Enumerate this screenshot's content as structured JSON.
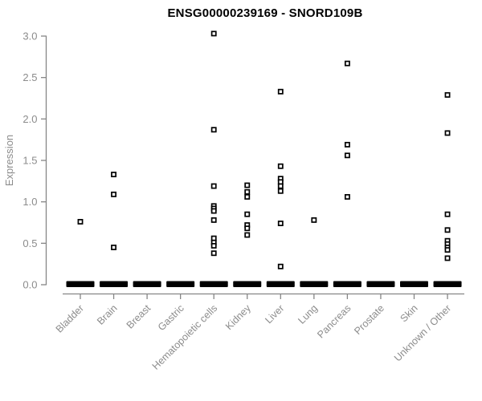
{
  "chart_data": {
    "type": "scatter",
    "title": "ENSG00000239169 - SNORD109B",
    "xlabel": "",
    "ylabel": "Expression",
    "ylim": [
      0.0,
      3.0
    ],
    "yticks": [
      "0.0",
      "0.5",
      "1.0",
      "1.5",
      "2.0",
      "2.5",
      "3.0"
    ],
    "categories": [
      "Bladder",
      "Brain",
      "Breast",
      "Gastric",
      "Hematopoietic cells",
      "Kidney",
      "Liver",
      "Lung",
      "Pancreas",
      "Prostate",
      "Skin",
      "Unknown / Other"
    ],
    "series": [
      {
        "category": "Bladder",
        "values": [
          0.76
        ]
      },
      {
        "category": "Brain",
        "values": [
          1.33,
          1.09,
          0.45
        ]
      },
      {
        "category": "Breast",
        "values": []
      },
      {
        "category": "Gastric",
        "values": []
      },
      {
        "category": "Hematopoietic cells",
        "values": [
          3.03,
          1.87,
          1.19,
          0.95,
          0.92,
          0.89,
          0.78,
          0.56,
          0.51,
          0.47,
          0.38
        ]
      },
      {
        "category": "Kidney",
        "values": [
          1.2,
          1.12,
          1.06,
          0.85,
          0.72,
          0.68,
          0.6
        ]
      },
      {
        "category": "Liver",
        "values": [
          2.33,
          1.43,
          1.28,
          1.24,
          1.19,
          1.13,
          0.74,
          0.22
        ]
      },
      {
        "category": "Lung",
        "values": [
          0.78
        ]
      },
      {
        "category": "Pancreas",
        "values": [
          2.67,
          1.69,
          1.56,
          1.06
        ]
      },
      {
        "category": "Prostate",
        "values": []
      },
      {
        "category": "Skin",
        "values": []
      },
      {
        "category": "Unknown / Other",
        "values": [
          2.29,
          1.83,
          0.85,
          0.66,
          0.53,
          0.49,
          0.45,
          0.42,
          0.32
        ]
      }
    ],
    "zero_cluster": {
      "present_in_all_categories": true,
      "value": 0.0,
      "note": "dense band of many overlapping points at expression ~0 under every category"
    },
    "grid": false,
    "legend": null,
    "marker": "open-square",
    "colors": {
      "points": "#000000",
      "axes": "#868686",
      "tick_labels": "#8c8c8c",
      "title": "#000000",
      "background": "#ffffff"
    }
  }
}
